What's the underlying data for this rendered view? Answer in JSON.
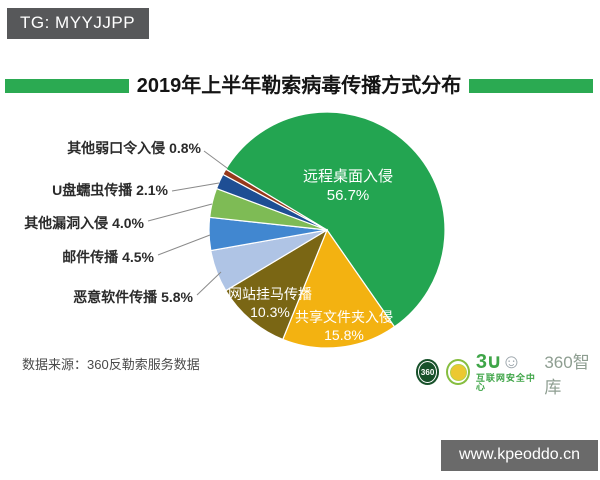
{
  "page": {
    "tg_badge": "TG: MYYJJPP",
    "url_badge": "www.kpeoddo.cn"
  },
  "header": {
    "title": "2019年上半年勒索病毒传播方式分布",
    "accent_color": "#2baa52"
  },
  "chart_data": {
    "type": "pie",
    "title": "2019年上半年勒索病毒传播方式分布",
    "unit": "%",
    "direction": "clockwise",
    "start_angle_from_north_deg": -59,
    "categories": [
      "远程桌面入侵",
      "共享文件夹入侵",
      "网站挂马传播",
      "恶意软件传播",
      "邮件传播",
      "其他漏洞入侵",
      "U盘蠕虫传播",
      "其他弱口令入侵"
    ],
    "values": [
      56.7,
      15.8,
      10.3,
      5.8,
      4.5,
      4.0,
      2.1,
      0.8
    ],
    "labels_pct": [
      "56.7%",
      "15.8%",
      "10.3%",
      "5.8%",
      "4.5%",
      "4.0%",
      "2.1%",
      "0.8%"
    ],
    "colors": [
      "#23a551",
      "#f3b211",
      "#7a6614",
      "#afc4e5",
      "#4187d0",
      "#7ebb55",
      "#1e4e94",
      "#97391b"
    ],
    "label_placement": [
      "inside",
      "inside",
      "inside",
      "outside",
      "outside",
      "outside",
      "outside",
      "outside"
    ],
    "legend_position": "none",
    "source": "数据来源：360反勒索服务数据"
  },
  "footer": {
    "source": "数据来源：360反勒索服务数据",
    "logo_mark": "3∪",
    "logo_face": "☺",
    "logo_sub": "互联网安全中心",
    "logo_brand": "360智库",
    "logo1_text": "360"
  }
}
